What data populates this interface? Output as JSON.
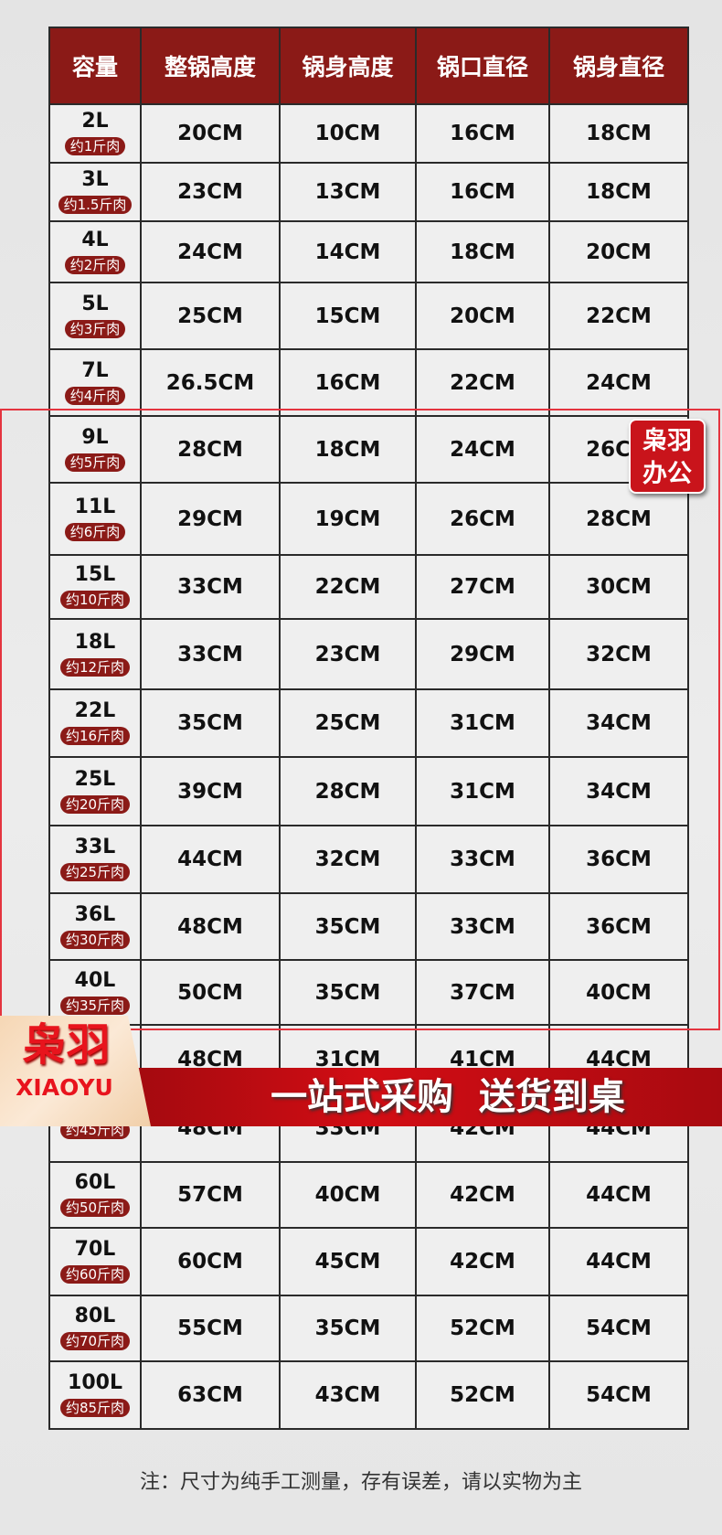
{
  "table": {
    "headers": [
      "容量",
      "整锅高度",
      "锅身高度",
      "锅口直径",
      "锅身直径"
    ],
    "rows": [
      {
        "cap": "2L",
        "meat": "约1斤肉",
        "v": [
          "20CM",
          "10CM",
          "16CM",
          "18CM"
        ]
      },
      {
        "cap": "3L",
        "meat": "约1.5斤肉",
        "v": [
          "23CM",
          "13CM",
          "16CM",
          "18CM"
        ]
      },
      {
        "cap": "4L",
        "meat": "约2斤肉",
        "v": [
          "24CM",
          "14CM",
          "18CM",
          "20CM"
        ]
      },
      {
        "cap": "5L",
        "meat": "约3斤肉",
        "v": [
          "25CM",
          "15CM",
          "20CM",
          "22CM"
        ]
      },
      {
        "cap": "7L",
        "meat": "约4斤肉",
        "v": [
          "26.5CM",
          "16CM",
          "22CM",
          "24CM"
        ]
      },
      {
        "cap": "9L",
        "meat": "约5斤肉",
        "v": [
          "28CM",
          "18CM",
          "24CM",
          "26CM"
        ]
      },
      {
        "cap": "11L",
        "meat": "约6斤肉",
        "v": [
          "29CM",
          "19CM",
          "26CM",
          "28CM"
        ]
      },
      {
        "cap": "15L",
        "meat": "约10斤肉",
        "v": [
          "33CM",
          "22CM",
          "27CM",
          "30CM"
        ]
      },
      {
        "cap": "18L",
        "meat": "约12斤肉",
        "v": [
          "33CM",
          "23CM",
          "29CM",
          "32CM"
        ]
      },
      {
        "cap": "22L",
        "meat": "约16斤肉",
        "v": [
          "35CM",
          "25CM",
          "31CM",
          "34CM"
        ]
      },
      {
        "cap": "25L",
        "meat": "约20斤肉",
        "v": [
          "39CM",
          "28CM",
          "31CM",
          "34CM"
        ]
      },
      {
        "cap": "33L",
        "meat": "约25斤肉",
        "v": [
          "44CM",
          "32CM",
          "33CM",
          "36CM"
        ]
      },
      {
        "cap": "36L",
        "meat": "约30斤肉",
        "v": [
          "48CM",
          "35CM",
          "33CM",
          "36CM"
        ]
      },
      {
        "cap": "40L",
        "meat": "约35斤肉",
        "v": [
          "50CM",
          "35CM",
          "37CM",
          "40CM"
        ]
      },
      {
        "cap": "",
        "meat": "",
        "v": [
          "48CM",
          "31CM",
          "41CM",
          "44CM"
        ]
      },
      {
        "cap": "",
        "meat": "约45斤肉",
        "v": [
          "48CM",
          "33CM",
          "42CM",
          "44CM"
        ]
      },
      {
        "cap": "60L",
        "meat": "约50斤肉",
        "v": [
          "57CM",
          "40CM",
          "42CM",
          "44CM"
        ]
      },
      {
        "cap": "70L",
        "meat": "约60斤肉",
        "v": [
          "60CM",
          "45CM",
          "42CM",
          "44CM"
        ]
      },
      {
        "cap": "80L",
        "meat": "约70斤肉",
        "v": [
          "55CM",
          "35CM",
          "52CM",
          "54CM"
        ]
      },
      {
        "cap": "100L",
        "meat": "约85斤肉",
        "v": [
          "63CM",
          "43CM",
          "52CM",
          "54CM"
        ]
      }
    ]
  },
  "stamp": {
    "line1": "枭羽",
    "line2": "办公"
  },
  "logo": {
    "cn": "枭羽",
    "en": "XIAOYU"
  },
  "banner": "一站式采购  送货到桌",
  "note": "注：尺寸为纯手工测量，存有误差，请以实物为主",
  "colors": {
    "header": "#8b1a17",
    "accent": "#d20d14"
  }
}
